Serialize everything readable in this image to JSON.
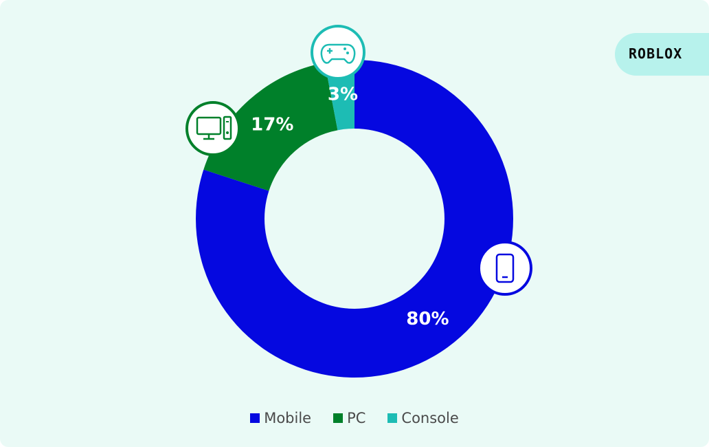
{
  "brand": {
    "logo_text": "ROBLOX"
  },
  "chart_data": {
    "type": "pie",
    "donut": true,
    "categories": [
      "Mobile",
      "PC",
      "Console"
    ],
    "values": [
      80,
      17,
      3
    ],
    "labels": [
      "80%",
      "17%",
      "3%"
    ],
    "colors": [
      "#0508e0",
      "#00802a",
      "#1dbcb4"
    ],
    "icons": [
      "phone-icon",
      "desktop-computer-icon",
      "gamepad-icon"
    ],
    "legend": [
      "Mobile",
      "PC",
      "Console"
    ],
    "legend_position": "bottom"
  }
}
